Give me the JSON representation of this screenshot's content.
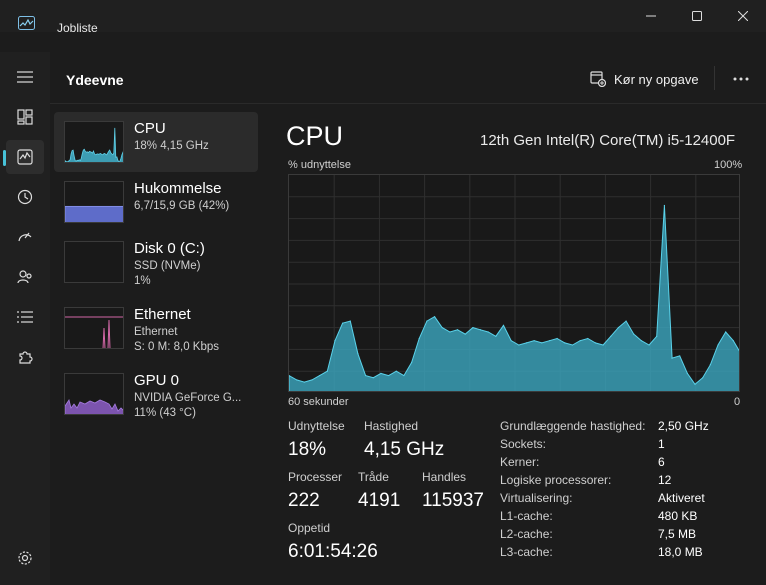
{
  "window": {
    "title": "Jobliste"
  },
  "header": {
    "page_title": "Ydeevne",
    "run_task_label": "Kør ny opgave"
  },
  "rail": {
    "items": [
      {
        "icon": "hamburger-menu-icon"
      },
      {
        "icon": "processes-grid-icon"
      },
      {
        "icon": "performance-chart-icon",
        "active": true
      },
      {
        "icon": "app-history-icon"
      },
      {
        "icon": "startup-apps-icon"
      },
      {
        "icon": "users-icon"
      },
      {
        "icon": "details-list-icon"
      },
      {
        "icon": "services-puzzle-icon"
      },
      {
        "icon": "settings-gear-icon"
      }
    ]
  },
  "devices": [
    {
      "name": "CPU",
      "line2": "18%  4,15 GHz",
      "line3": "",
      "selected": true,
      "color": "#3fa6bd"
    },
    {
      "name": "Hukommelse",
      "line2": "6,7/15,9 GB (42%)",
      "line3": "",
      "color": "#6d7ad9",
      "usage_fraction": 0.42
    },
    {
      "name": "Disk 0 (C:)",
      "line2": "SSD (NVMe)",
      "line3": "1%",
      "color": "#6cbf46",
      "usage_fraction": 0.01
    },
    {
      "name": "Ethernet",
      "line2": "Ethernet",
      "line3": "S: 0  M: 8,0 Kbps",
      "color": "#d468a8"
    },
    {
      "name": "GPU 0",
      "line2": "NVIDIA GeForce G...",
      "line3": "11%  (43 °C)",
      "color": "#9a6ad0"
    }
  ],
  "cpu": {
    "title": "CPU",
    "model": "12th Gen Intel(R) Core(TM) i5-12400F",
    "y_label": "% udnyttelse",
    "y_max_label": "100%",
    "x_left_label": "60 sekunder",
    "x_right_label": "0",
    "accent": "#4fc3d9"
  },
  "stats": {
    "utilization_label": "Udnyttelse",
    "utilization": "18%",
    "speed_label": "Hastighed",
    "speed": "4,15 GHz",
    "processes_label": "Processer",
    "processes": "222",
    "threads_label": "Tråde",
    "threads": "4191",
    "handles_label": "Handles",
    "handles": "115937",
    "uptime_label": "Oppetid",
    "uptime": "6:01:54:26"
  },
  "specs": [
    {
      "k": "Grundlæggende hastighed:",
      "v": "2,50 GHz"
    },
    {
      "k": "Sockets:",
      "v": "1"
    },
    {
      "k": "Kerner:",
      "v": "6"
    },
    {
      "k": "Logiske processorer:",
      "v": "12"
    },
    {
      "k": "Virtualisering:",
      "v": "Aktiveret"
    },
    {
      "k": "L1-cache:",
      "v": "480 KB"
    },
    {
      "k": "L2-cache:",
      "v": "7,5 MB"
    },
    {
      "k": "L3-cache:",
      "v": "18,0 MB"
    }
  ],
  "chart_data": {
    "type": "area",
    "y_range": [
      0,
      100
    ],
    "x_range": [
      60,
      0
    ],
    "x_unit": "sekunder siden",
    "grid": true,
    "values": [
      8,
      6,
      5,
      6,
      8,
      10,
      24,
      32,
      33,
      18,
      8,
      7,
      9,
      8,
      10,
      8,
      14,
      25,
      33,
      35,
      30,
      28,
      29,
      27,
      30,
      29,
      28,
      26,
      31,
      24,
      22,
      23,
      24,
      23,
      24,
      25,
      23,
      22,
      24,
      25,
      23,
      22,
      26,
      30,
      33,
      27,
      24,
      22,
      26,
      86,
      16,
      17,
      9,
      4,
      7,
      13,
      22,
      28,
      24,
      18
    ]
  }
}
